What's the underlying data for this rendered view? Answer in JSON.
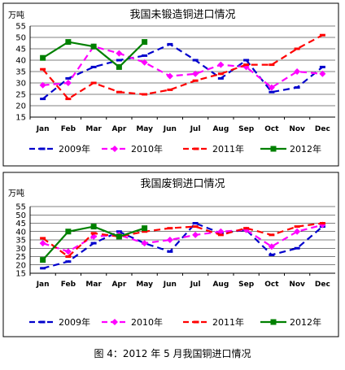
{
  "caption": "图 4：2012 年 5 月我国铜进口情况",
  "chart_data": [
    {
      "type": "line",
      "title": "我国未锻造铜进口情况",
      "unit": "万吨",
      "categories": [
        "Jan",
        "Feb",
        "Mar",
        "Apr",
        "May",
        "Jun",
        "Jul",
        "Aug",
        "Sep",
        "Oct",
        "Nov",
        "Dec"
      ],
      "ylim": [
        15,
        55
      ],
      "yticks": [
        15,
        20,
        25,
        30,
        35,
        40,
        45,
        50,
        55
      ],
      "grid": true,
      "legend": "bottom",
      "series": [
        {
          "name": "2009年",
          "color": "#0000cc",
          "dash": "8,5",
          "marker": "dash",
          "values": [
            23,
            32,
            37,
            40,
            42,
            47,
            40,
            32,
            40,
            26,
            28,
            37
          ]
        },
        {
          "name": "2010年",
          "color": "#ff00ff",
          "dash": "8,5",
          "marker": "diamond",
          "values": [
            29,
            30,
            46,
            43,
            39,
            33,
            34,
            38,
            37,
            28,
            35,
            34
          ]
        },
        {
          "name": "2011年",
          "color": "#ff0000",
          "dash": "8,5",
          "marker": "dash",
          "values": [
            36,
            23,
            30,
            26,
            25,
            27,
            31,
            34,
            38,
            38,
            45,
            51
          ]
        },
        {
          "name": "2012年",
          "color": "#008000",
          "dash": "",
          "marker": "square",
          "values": [
            41,
            48,
            46,
            37,
            48,
            null,
            null,
            null,
            null,
            null,
            null,
            null
          ]
        }
      ]
    },
    {
      "type": "line",
      "title": "我国废铜进口情况",
      "unit": "万吨",
      "categories": [
        "Jan",
        "Feb",
        "Mar",
        "Apr",
        "May",
        "Jun",
        "Jul",
        "Aug",
        "Sep",
        "Oct",
        "Nov",
        "Dec"
      ],
      "ylim": [
        15,
        55
      ],
      "yticks": [
        15,
        20,
        25,
        30,
        35,
        40,
        45,
        50,
        55
      ],
      "grid": true,
      "legend": "bottom",
      "series": [
        {
          "name": "2009年",
          "color": "#0000cc",
          "dash": "8,5",
          "marker": "dash",
          "values": [
            18,
            22,
            33,
            40,
            33,
            28,
            45,
            39,
            41,
            26,
            30,
            43
          ]
        },
        {
          "name": "2010年",
          "color": "#ff00ff",
          "dash": "8,5",
          "marker": "diamond",
          "values": [
            33,
            28,
            37,
            38,
            33,
            35,
            38,
            40,
            41,
            31,
            40,
            44
          ]
        },
        {
          "name": "2011年",
          "color": "#ff0000",
          "dash": "8,5",
          "marker": "dash",
          "values": [
            36,
            25,
            39,
            37,
            40,
            42,
            43,
            38,
            42,
            38,
            43,
            45
          ]
        },
        {
          "name": "2012年",
          "color": "#008000",
          "dash": "",
          "marker": "square",
          "values": [
            23,
            40,
            43,
            37,
            42,
            null,
            null,
            null,
            null,
            null,
            null,
            null
          ]
        }
      ]
    }
  ]
}
